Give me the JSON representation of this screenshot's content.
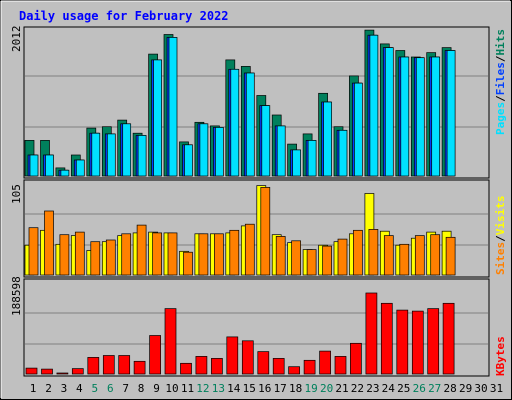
{
  "chart_data": [
    {
      "type": "bar",
      "title": "Daily usage for February 2022",
      "ymax_label": "2012",
      "ymax": 2012,
      "legend": [
        "Pages",
        "Files",
        "Hits"
      ],
      "categories": [
        "1",
        "2",
        "3",
        "4",
        "5",
        "6",
        "7",
        "8",
        "9",
        "10",
        "11",
        "12",
        "13",
        "14",
        "15",
        "16",
        "17",
        "18",
        "19",
        "20",
        "21",
        "22",
        "23",
        "24",
        "25",
        "26",
        "27",
        "28",
        "29",
        "30",
        "31"
      ],
      "series": [
        {
          "name": "Hits",
          "values": [
            490,
            490,
            111,
            290,
            660,
            680,
            770,
            590,
            1680,
            1950,
            470,
            740,
            690,
            1600,
            1510,
            1110,
            840,
            440,
            580,
            1140,
            680,
            1380,
            2010,
            1820,
            1730,
            1640,
            1700,
            1770,
            null,
            null,
            null
          ]
        },
        {
          "name": "Files",
          "values": [
            290,
            290,
            80,
            220,
            590,
            580,
            720,
            560,
            1600,
            1910,
            430,
            720,
            670,
            1470,
            1420,
            970,
            690,
            360,
            490,
            1020,
            630,
            1280,
            1940,
            1770,
            1640,
            1630,
            1640,
            1730,
            null,
            null,
            null
          ]
        },
        {
          "name": "Pages",
          "values": [
            290,
            290,
            80,
            220,
            590,
            580,
            720,
            560,
            1600,
            1910,
            430,
            720,
            670,
            1470,
            1420,
            970,
            690,
            360,
            490,
            1020,
            630,
            1280,
            1940,
            1770,
            1640,
            1630,
            1640,
            1730,
            null,
            null,
            null
          ]
        }
      ]
    },
    {
      "type": "bar",
      "ymax_label": "105",
      "ymax": 105,
      "legend": [
        "Sites",
        "Visits"
      ],
      "series": [
        {
          "name": "Visits",
          "values": [
            34,
            51,
            35,
            45,
            28,
            38,
            45,
            48,
            49,
            48,
            27,
            47,
            47,
            48,
            56,
            102,
            46,
            37,
            29,
            34,
            38,
            47,
            93,
            50,
            34,
            42,
            49,
            50,
            null,
            null,
            null
          ]
        },
        {
          "name": "Sites",
          "values": [
            54,
            73,
            46,
            49,
            38,
            40,
            47,
            57,
            48,
            48,
            26,
            47,
            47,
            51,
            58,
            100,
            44,
            39,
            29,
            33,
            41,
            51,
            52,
            45,
            35,
            45,
            46,
            43,
            null,
            null,
            null
          ]
        }
      ]
    },
    {
      "type": "bar",
      "ymax_label": "188598",
      "ymax": 188598,
      "legend": [
        "KBytes"
      ],
      "series": [
        {
          "name": "KBytes",
          "values": [
            12000,
            10000,
            2000,
            11000,
            34000,
            38000,
            38000,
            26000,
            79000,
            134000,
            22000,
            36000,
            32000,
            76000,
            68000,
            46000,
            32000,
            15000,
            28000,
            47000,
            36000,
            63000,
            166000,
            145000,
            131000,
            129000,
            134000,
            145000,
            null,
            null,
            null
          ]
        }
      ]
    }
  ],
  "colors": {
    "hits": "#00805c",
    "files": "#0040ff",
    "pages": "#00e0ff",
    "visits": "#ffff00",
    "sites": "#ff8000",
    "kbytes": "#ff0000",
    "title": "#0000ff",
    "weekend_label": "#00805c"
  },
  "weekend_days": [
    5,
    6,
    12,
    13,
    19,
    20,
    26,
    27
  ]
}
